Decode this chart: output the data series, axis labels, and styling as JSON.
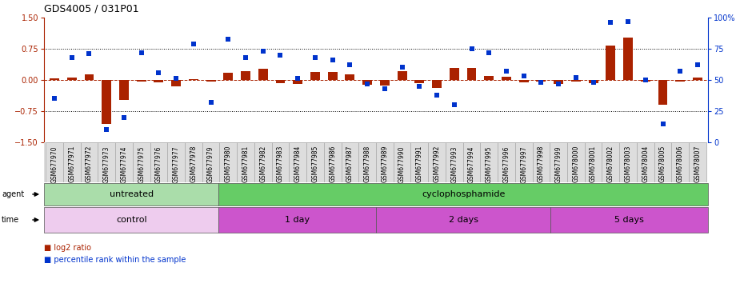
{
  "title": "GDS4005 / 031P01",
  "samples": [
    "GSM677970",
    "GSM677971",
    "GSM677972",
    "GSM677973",
    "GSM677974",
    "GSM677975",
    "GSM677976",
    "GSM677977",
    "GSM677978",
    "GSM677979",
    "GSM677980",
    "GSM677981",
    "GSM677982",
    "GSM677983",
    "GSM677984",
    "GSM677985",
    "GSM677986",
    "GSM677987",
    "GSM677988",
    "GSM677989",
    "GSM677990",
    "GSM677991",
    "GSM677992",
    "GSM677993",
    "GSM677994",
    "GSM677995",
    "GSM677996",
    "GSM677997",
    "GSM677998",
    "GSM677999",
    "GSM678000",
    "GSM678001",
    "GSM678002",
    "GSM678003",
    "GSM678004",
    "GSM678005",
    "GSM678006",
    "GSM678007"
  ],
  "log2_ratio": [
    0.03,
    0.05,
    0.14,
    -1.05,
    -0.48,
    -0.04,
    -0.06,
    -0.16,
    0.02,
    -0.04,
    0.18,
    0.22,
    0.26,
    -0.07,
    -0.1,
    0.2,
    0.19,
    0.13,
    -0.12,
    -0.14,
    0.21,
    -0.07,
    -0.19,
    0.28,
    0.29,
    0.1,
    0.08,
    -0.05,
    -0.04,
    -0.09,
    -0.04,
    -0.07,
    0.82,
    1.02,
    -0.04,
    -0.6,
    -0.04,
    0.06
  ],
  "percentile_rank": [
    35,
    68,
    71,
    10,
    20,
    72,
    56,
    51,
    79,
    32,
    83,
    68,
    73,
    70,
    51,
    68,
    66,
    62,
    47,
    43,
    60,
    45,
    38,
    30,
    75,
    72,
    57,
    53,
    48,
    47,
    52,
    48,
    96,
    97,
    50,
    15,
    57,
    62
  ],
  "bar_color": "#aa2200",
  "dot_color": "#0033cc",
  "plot_bg": "#ffffff",
  "ylim_left": [
    -1.5,
    1.5
  ],
  "ylim_right": [
    0,
    100
  ],
  "yticks_left": [
    -1.5,
    -0.75,
    0.0,
    0.75,
    1.5
  ],
  "yticks_right": [
    0,
    25,
    50,
    75,
    100
  ],
  "agent_groups": [
    {
      "label": "untreated",
      "start": 0,
      "end": 9,
      "color": "#aaddaa"
    },
    {
      "label": "cyclophosphamide",
      "start": 10,
      "end": 37,
      "color": "#66cc66"
    }
  ],
  "time_groups": [
    {
      "label": "control",
      "start": 0,
      "end": 9,
      "color": "#eeccee"
    },
    {
      "label": "1 day",
      "start": 10,
      "end": 18,
      "color": "#cc55cc"
    },
    {
      "label": "2 days",
      "start": 19,
      "end": 28,
      "color": "#cc55cc"
    },
    {
      "label": "5 days",
      "start": 29,
      "end": 37,
      "color": "#cc55cc"
    }
  ],
  "xlabel_bg": "#dddddd",
  "xlabel_border": "#aaaaaa"
}
